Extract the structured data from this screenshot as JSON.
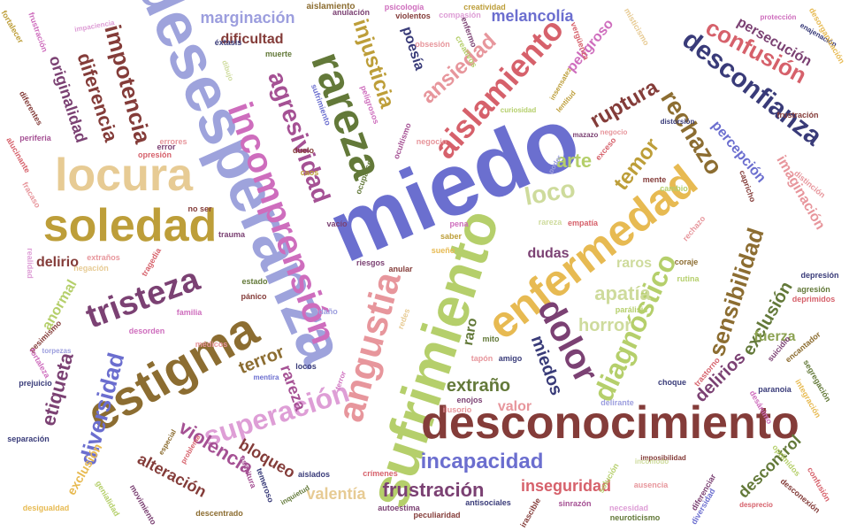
{
  "words": [
    {
      "text": "miedo",
      "color": "#6b6fcf"
    },
    {
      "text": "desesperanza",
      "color": "#9ea3dc"
    },
    {
      "text": "sufrimiento",
      "color": "#b5cf6b"
    },
    {
      "text": "desconocimiento",
      "color": "#843c39"
    },
    {
      "text": "enfermedad",
      "color": "#e7ba52"
    },
    {
      "text": "estigma",
      "color": "#8c6d31"
    },
    {
      "text": "soledad",
      "color": "#bd9e39"
    },
    {
      "text": "locura",
      "color": "#e7cb94"
    },
    {
      "text": "rareza",
      "color": "#637939"
    },
    {
      "text": "incomprensión",
      "color": "#ce6dbd"
    },
    {
      "text": "angustia",
      "color": "#e7969c"
    },
    {
      "text": "aislamiento",
      "color": "#d6616b"
    },
    {
      "text": "dolor",
      "color": "#7b4173"
    },
    {
      "text": "tristeza",
      "color": "#7b4173"
    },
    {
      "text": "desconfianza",
      "color": "#393b79"
    },
    {
      "text": "diagnóstico",
      "color": "#b5cf6b"
    },
    {
      "text": "sensibilidad",
      "color": "#8c6d31"
    },
    {
      "text": "superación",
      "color": "#de9ed6"
    },
    {
      "text": "agresividad",
      "color": "#a55194"
    },
    {
      "text": "impotencia",
      "color": "#843c39"
    },
    {
      "text": "rechazo",
      "color": "#8c6d31"
    },
    {
      "text": "diversidad",
      "color": "#6b6ecf"
    },
    {
      "text": "confusión",
      "color": "#d6616b"
    },
    {
      "text": "injusticia",
      "color": "#bd9e39"
    },
    {
      "text": "ansiedad",
      "color": "#e7969c"
    },
    {
      "text": "ruptura",
      "color": "#843c39"
    },
    {
      "text": "temor",
      "color": "#bd9e39"
    },
    {
      "text": "loco",
      "color": "#cedb9c"
    },
    {
      "text": "arte",
      "color": "#b5cf6b"
    },
    {
      "text": "diferencia",
      "color": "#843c39"
    },
    {
      "text": "originalidad",
      "color": "#7b4173"
    },
    {
      "text": "violencia",
      "color": "#a55194"
    },
    {
      "text": "etiqueta",
      "color": "#7b4173"
    },
    {
      "text": "incapacidad",
      "color": "#6b6ecf"
    },
    {
      "text": "frustración",
      "color": "#7b4173"
    },
    {
      "text": "delirios",
      "color": "#7b4173"
    },
    {
      "text": "exclusión",
      "color": "#637939"
    },
    {
      "text": "miedos",
      "color": "#393b79"
    },
    {
      "text": "extraño",
      "color": "#637939"
    },
    {
      "text": "apatía",
      "color": "#cedb9c"
    },
    {
      "text": "horror",
      "color": "#cedb9c"
    },
    {
      "text": "terror",
      "color": "#8c6d31"
    },
    {
      "text": "rareza",
      "color": "#a55194"
    },
    {
      "text": "bloqueo",
      "color": "#843c39"
    },
    {
      "text": "alteración",
      "color": "#843c39"
    },
    {
      "text": "valentía",
      "color": "#e7cb94"
    },
    {
      "text": "inseguridad",
      "color": "#d6616b"
    },
    {
      "text": "descontrol",
      "color": "#637939"
    },
    {
      "text": "marginación",
      "color": "#9c9ede"
    },
    {
      "text": "dificultad",
      "color": "#843c39"
    },
    {
      "text": "melancolía",
      "color": "#6b6ecf"
    },
    {
      "text": "persecución",
      "color": "#7b4173"
    },
    {
      "text": "percepción",
      "color": "#6b6ecf"
    },
    {
      "text": "imaginación",
      "color": "#e7969c"
    },
    {
      "text": "peligroso",
      "color": "#ce6dbd"
    },
    {
      "text": "poesía",
      "color": "#393b79"
    },
    {
      "text": "dudas",
      "color": "#7b4173"
    },
    {
      "text": "raros",
      "color": "#cedb9c"
    },
    {
      "text": "raro",
      "color": "#637939"
    },
    {
      "text": "valor",
      "color": "#e7969c"
    },
    {
      "text": "fuerza",
      "color": "#8ca252"
    },
    {
      "text": "delirio",
      "color": "#843c39"
    },
    {
      "text": "anormal",
      "color": "#b5cf6b"
    },
    {
      "text": "exclusión",
      "color": "#e7ba52"
    },
    {
      "text": "aislamiento",
      "color": "#8c6d31"
    },
    {
      "text": "anulación",
      "color": "#7b4173"
    },
    {
      "text": "psicología",
      "color": "#ce6dbd"
    },
    {
      "text": "violentos",
      "color": "#843c39"
    },
    {
      "text": "compasión",
      "color": "#de9ed6"
    },
    {
      "text": "creatividad",
      "color": "#bd9e39"
    },
    {
      "text": "enfermo",
      "color": "#7b4173"
    },
    {
      "text": "muerte",
      "color": "#637939"
    },
    {
      "text": "éxtasis",
      "color": "#393b79"
    },
    {
      "text": "dibujo",
      "color": "#cedb9c"
    },
    {
      "text": "vergüenza",
      "color": "#d6616b"
    },
    {
      "text": "misticismo",
      "color": "#e7cb94"
    },
    {
      "text": "enajenación",
      "color": "#393b79"
    },
    {
      "text": "protección",
      "color": "#ce6dbd"
    },
    {
      "text": "desorganización",
      "color": "#e7ba52"
    },
    {
      "text": "frustración",
      "color": "#843c39"
    },
    {
      "text": "depresión",
      "color": "#393b79"
    },
    {
      "text": "agresión",
      "color": "#637939"
    },
    {
      "text": "deprimidos",
      "color": "#d6616b"
    },
    {
      "text": "opresión",
      "color": "#d6616b"
    },
    {
      "text": "errores",
      "color": "#e7969c"
    },
    {
      "text": "curiosidad",
      "color": "#b5cf6b"
    },
    {
      "text": "insensatez",
      "color": "#bd9e39"
    },
    {
      "text": "distorsión",
      "color": "#393b79"
    },
    {
      "text": "mazazo",
      "color": "#7b4173"
    },
    {
      "text": "negocio",
      "color": "#e7969c"
    },
    {
      "text": "vacío",
      "color": "#7b4173"
    },
    {
      "text": "pena",
      "color": "#ce6dbd"
    },
    {
      "text": "empatía",
      "color": "#d6616b"
    },
    {
      "text": "saber",
      "color": "#bd9e39"
    },
    {
      "text": "rareza",
      "color": "#cedb9c"
    },
    {
      "text": "trauma",
      "color": "#7b4173"
    },
    {
      "text": "estado",
      "color": "#637939"
    },
    {
      "text": "pánico",
      "color": "#843c39"
    },
    {
      "text": "daño",
      "color": "#9c9ede"
    },
    {
      "text": "familia",
      "color": "#ce6dbd"
    },
    {
      "text": "tragedia",
      "color": "#d6616b"
    },
    {
      "text": "extraños",
      "color": "#e7969c"
    },
    {
      "text": "negación",
      "color": "#e7cb94"
    },
    {
      "text": "realidad",
      "color": "#de9ed6"
    },
    {
      "text": "sueño",
      "color": "#e7ba52"
    },
    {
      "text": "amigo",
      "color": "#393b79"
    },
    {
      "text": "enojos",
      "color": "#7b4173"
    },
    {
      "text": "ilusorio",
      "color": "#e7969c"
    },
    {
      "text": "delirante",
      "color": "#9c9ede"
    },
    {
      "text": "parálisis",
      "color": "#b5cf6b"
    },
    {
      "text": "imposibilidad",
      "color": "#843c39"
    },
    {
      "text": "aislados",
      "color": "#393b79"
    },
    {
      "text": "crímenes",
      "color": "#d6616b"
    },
    {
      "text": "autoestima",
      "color": "#7b4173"
    },
    {
      "text": "antisociales",
      "color": "#393b79"
    },
    {
      "text": "peculiaridad",
      "color": "#843c39"
    },
    {
      "text": "descentrado",
      "color": "#8c6d31"
    },
    {
      "text": "escritura",
      "color": "#a55194"
    },
    {
      "text": "temeroso",
      "color": "#393b79"
    },
    {
      "text": "inquietud",
      "color": "#637939"
    },
    {
      "text": "mentira",
      "color": "#6b6ecf"
    },
    {
      "text": "médicos",
      "color": "#e7969c"
    },
    {
      "text": "desorden",
      "color": "#ce6dbd"
    },
    {
      "text": "pesimismo",
      "color": "#843c39"
    },
    {
      "text": "torpezas",
      "color": "#9c9ede"
    },
    {
      "text": "prejuicio",
      "color": "#393b79"
    },
    {
      "text": "especial",
      "color": "#8c6d31"
    },
    {
      "text": "problema",
      "color": "#d6616b"
    },
    {
      "text": "movimiento",
      "color": "#7b4173"
    },
    {
      "text": "desigualdad",
      "color": "#e7ba52"
    },
    {
      "text": "genialidad",
      "color": "#b5cf6b"
    },
    {
      "text": "separación",
      "color": "#393b79"
    },
    {
      "text": "diferentes",
      "color": "#843c39"
    },
    {
      "text": "periferia",
      "color": "#a55194"
    },
    {
      "text": "alucinante",
      "color": "#d6616b"
    },
    {
      "text": "fortaleza",
      "color": "#ce6dbd"
    },
    {
      "text": "no ser",
      "color": "#843c39"
    },
    {
      "text": "error",
      "color": "#7b4173"
    },
    {
      "text": "impaciencia",
      "color": "#de9ed6"
    },
    {
      "text": "fracaso",
      "color": "#e7969c"
    },
    {
      "text": "frustración",
      "color": "#ce6dbd"
    },
    {
      "text": "fortalecer",
      "color": "#bd9e39"
    },
    {
      "text": "locos",
      "color": "#393b79"
    },
    {
      "text": "tapón",
      "color": "#e7969c"
    },
    {
      "text": "mito",
      "color": "#637939"
    },
    {
      "text": "redes",
      "color": "#e7cb94"
    },
    {
      "text": "anular",
      "color": "#843c39"
    },
    {
      "text": "riesgos",
      "color": "#7b4173"
    },
    {
      "text": "ocultismo",
      "color": "#a55194"
    },
    {
      "text": "negocio",
      "color": "#e7969c"
    },
    {
      "text": "duelo",
      "color": "#843c39"
    },
    {
      "text": "caos",
      "color": "#bd9e39"
    },
    {
      "text": "ocuparse",
      "color": "#637939"
    },
    {
      "text": "sufrimiento",
      "color": "#6b6ecf"
    },
    {
      "text": "peligrosos",
      "color": "#ce6dbd"
    },
    {
      "text": "rutina",
      "color": "#b5cf6b"
    },
    {
      "text": "coraje",
      "color": "#8c6d31"
    },
    {
      "text": "rechazo",
      "color": "#e7969c"
    },
    {
      "text": "trastorno",
      "color": "#d6616b"
    },
    {
      "text": "suicidio",
      "color": "#7b4173"
    },
    {
      "text": "choque",
      "color": "#393b79"
    },
    {
      "text": "mente",
      "color": "#843c39"
    },
    {
      "text": "cambio",
      "color": "#b5cf6b"
    },
    {
      "text": "capricho",
      "color": "#843c39"
    },
    {
      "text": "distinción",
      "color": "#e7969c"
    },
    {
      "text": "encantador",
      "color": "#8c6d31"
    },
    {
      "text": "segregación",
      "color": "#637939"
    },
    {
      "text": "integración",
      "color": "#e7ba52"
    },
    {
      "text": "paranoia",
      "color": "#393b79"
    },
    {
      "text": "desánimo",
      "color": "#ce6dbd"
    },
    {
      "text": "oprimidos",
      "color": "#b5cf6b"
    },
    {
      "text": "confusión",
      "color": "#d6616b"
    },
    {
      "text": "desconexión",
      "color": "#843c39"
    },
    {
      "text": "diferenciar",
      "color": "#7b4173"
    },
    {
      "text": "diversidad",
      "color": "#6b6ecf"
    },
    {
      "text": "ausencia",
      "color": "#e7969c"
    },
    {
      "text": "solución",
      "color": "#b5cf6b"
    },
    {
      "text": "incómodo",
      "color": "#cedb9c"
    },
    {
      "text": "sinrazón",
      "color": "#a55194"
    },
    {
      "text": "necesidad",
      "color": "#de9ed6"
    },
    {
      "text": "irascible",
      "color": "#843c39"
    },
    {
      "text": "neuroticismo",
      "color": "#637939"
    },
    {
      "text": "desprecio",
      "color": "#d6616b"
    },
    {
      "text": "lentitud",
      "color": "#bd9e39"
    },
    {
      "text": "poder",
      "color": "#9c9ede"
    },
    {
      "text": "terror",
      "color": "#ce6dbd"
    },
    {
      "text": "exceso",
      "color": "#d6616b"
    },
    {
      "text": "obsesión",
      "color": "#e7969c"
    },
    {
      "text": "creativos",
      "color": "#b5cf6b"
    }
  ]
}
